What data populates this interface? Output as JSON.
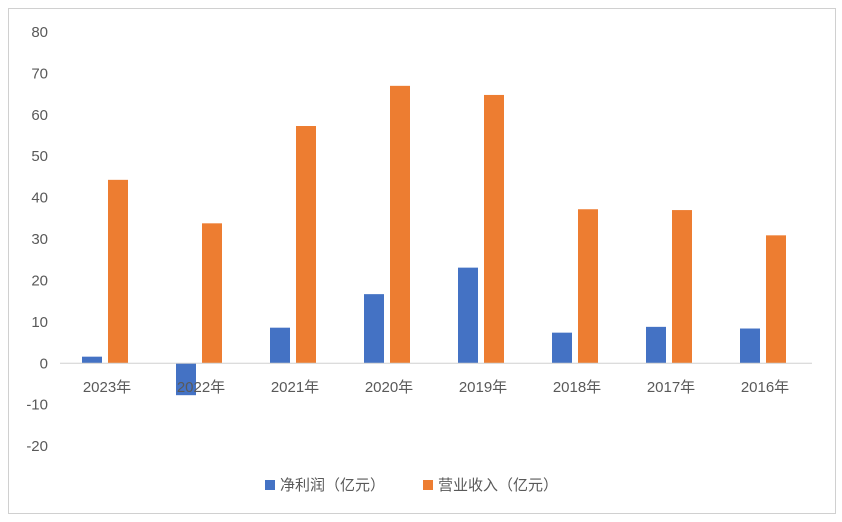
{
  "chart_data": {
    "type": "bar",
    "title": "",
    "xlabel": "",
    "ylabel": "",
    "categories": [
      "2023年",
      "2022年",
      "2021年",
      "2020年",
      "2019年",
      "2018年",
      "2017年",
      "2016年"
    ],
    "series": [
      {
        "name": "净利润（亿元）",
        "color": "#4472c4",
        "values": [
          1.6,
          -7.7,
          8.6,
          16.7,
          23.1,
          7.4,
          8.8,
          8.4
        ]
      },
      {
        "name": "营业收入（亿元）",
        "color": "#ed7d31",
        "values": [
          44.3,
          33.8,
          57.3,
          67.0,
          64.8,
          37.2,
          37.0,
          30.9
        ]
      }
    ],
    "ylim": [
      -20,
      80
    ],
    "yticks": [
      80,
      70,
      60,
      50,
      40,
      30,
      20,
      10,
      0,
      -10,
      -20
    ],
    "grid": false,
    "legend": "bottom"
  }
}
